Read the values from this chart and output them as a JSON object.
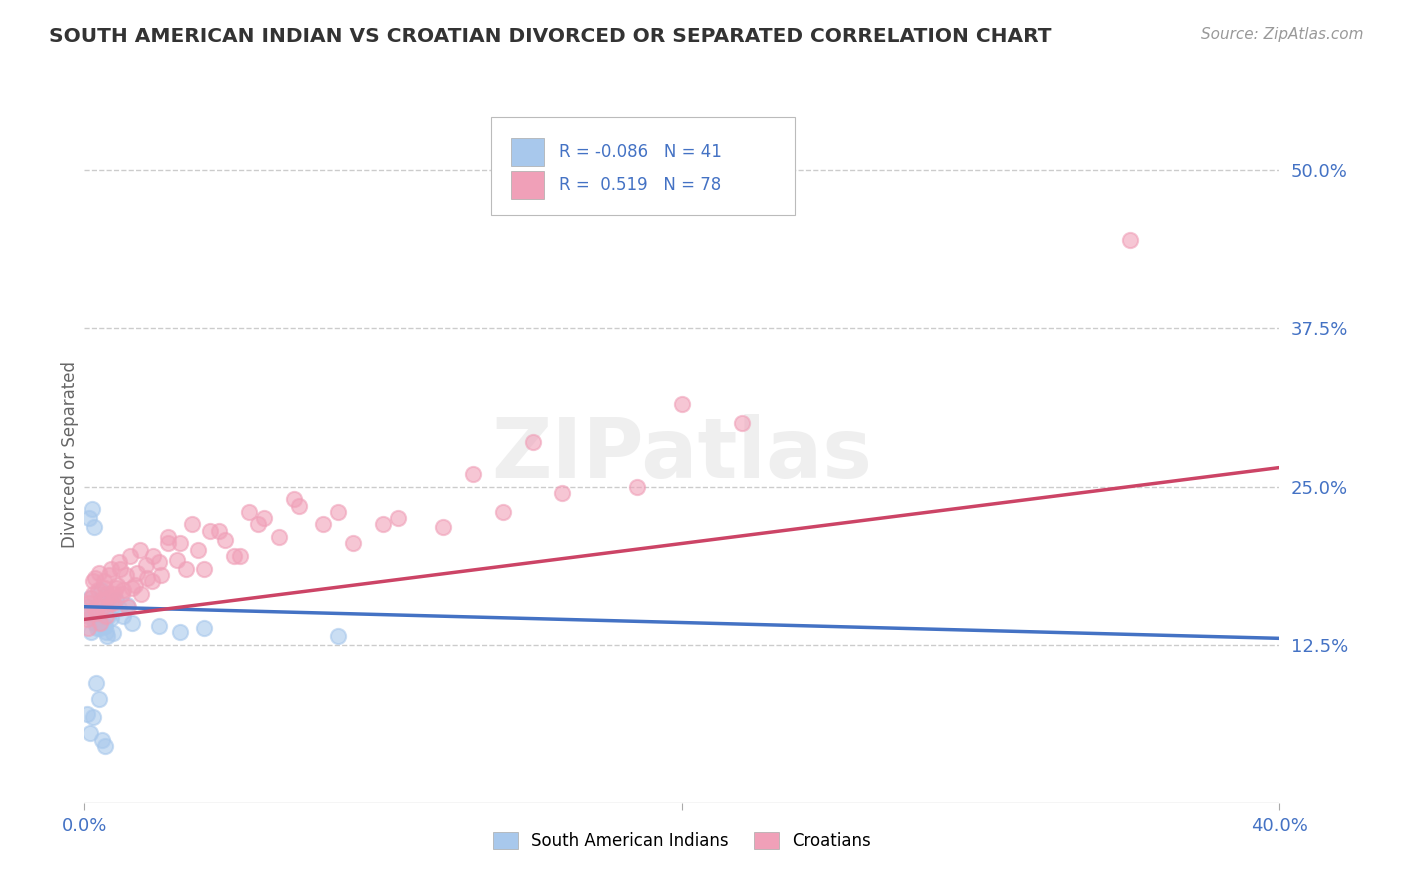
{
  "title": "SOUTH AMERICAN INDIAN VS CROATIAN DIVORCED OR SEPARATED CORRELATION CHART",
  "source": "Source: ZipAtlas.com",
  "ylabel": "Divorced or Separated",
  "legend_label1": "South American Indians",
  "legend_label2": "Croatians",
  "r1": -0.086,
  "n1": 41,
  "r2": 0.519,
  "n2": 78,
  "color1": "#A8C8EC",
  "color2": "#F0A0B8",
  "line1_color": "#4472C4",
  "line2_color": "#CC4466",
  "xlim": [
    0.0,
    40.0
  ],
  "ylim": [
    0.0,
    55.0
  ],
  "yticks": [
    12.5,
    25.0,
    37.5,
    50.0
  ],
  "watermark_text": "ZIPatlas",
  "line1_y0": 15.5,
  "line1_y1": 13.0,
  "line2_y0": 14.5,
  "line2_y1": 26.5,
  "scatter1_x": [
    0.08,
    0.12,
    0.18,
    0.22,
    0.28,
    0.35,
    0.42,
    0.48,
    0.55,
    0.62,
    0.68,
    0.75,
    0.82,
    0.88,
    0.95,
    1.05,
    1.15,
    1.28,
    1.42,
    1.58,
    0.15,
    0.25,
    0.32,
    0.38,
    0.45,
    0.52,
    0.58,
    0.65,
    0.72,
    0.78,
    2.5,
    3.2,
    4.0,
    0.1,
    0.2,
    0.3,
    0.4,
    0.5,
    0.6,
    0.7,
    8.5
  ],
  "scatter1_y": [
    15.5,
    14.8,
    16.2,
    13.5,
    15.0,
    14.2,
    13.8,
    14.5,
    16.8,
    15.2,
    14.0,
    13.2,
    15.8,
    14.6,
    13.4,
    16.0,
    15.4,
    14.8,
    15.6,
    14.2,
    22.5,
    23.2,
    21.8,
    15.0,
    14.5,
    13.8,
    15.5,
    14.0,
    13.5,
    14.8,
    14.0,
    13.5,
    13.8,
    7.0,
    5.5,
    6.8,
    9.5,
    8.2,
    5.0,
    4.5,
    13.2
  ],
  "scatter2_x": [
    0.08,
    0.15,
    0.22,
    0.3,
    0.38,
    0.45,
    0.52,
    0.6,
    0.68,
    0.75,
    0.82,
    0.9,
    0.98,
    1.08,
    1.18,
    1.3,
    1.45,
    1.6,
    1.75,
    1.9,
    2.1,
    2.3,
    2.55,
    2.8,
    3.1,
    3.4,
    3.8,
    4.2,
    4.7,
    5.2,
    5.8,
    6.5,
    7.2,
    8.0,
    9.0,
    10.5,
    12.0,
    14.0,
    16.0,
    18.5,
    0.12,
    0.2,
    0.28,
    0.35,
    0.42,
    0.5,
    0.58,
    0.65,
    0.72,
    0.8,
    0.88,
    0.95,
    1.05,
    1.15,
    1.25,
    1.38,
    1.52,
    1.68,
    1.85,
    2.05,
    2.25,
    2.5,
    2.8,
    3.2,
    3.6,
    4.0,
    4.5,
    5.0,
    5.5,
    6.0,
    7.0,
    8.5,
    10.0,
    20.0,
    22.0,
    15.0,
    35.0,
    13.0
  ],
  "scatter2_y": [
    14.5,
    15.8,
    16.2,
    17.5,
    15.0,
    16.8,
    14.2,
    15.5,
    17.0,
    16.5,
    18.0,
    15.8,
    16.5,
    17.2,
    18.5,
    16.8,
    15.5,
    17.0,
    18.2,
    16.5,
    17.8,
    19.5,
    18.0,
    20.5,
    19.2,
    18.5,
    20.0,
    21.5,
    20.8,
    19.5,
    22.0,
    21.0,
    23.5,
    22.0,
    20.5,
    22.5,
    21.8,
    23.0,
    24.5,
    25.0,
    13.8,
    15.2,
    16.5,
    17.8,
    15.5,
    18.2,
    16.0,
    17.5,
    14.8,
    16.2,
    18.5,
    15.8,
    17.0,
    19.0,
    16.5,
    18.0,
    19.5,
    17.2,
    20.0,
    18.8,
    17.5,
    19.0,
    21.0,
    20.5,
    22.0,
    18.5,
    21.5,
    19.5,
    23.0,
    22.5,
    24.0,
    23.0,
    22.0,
    31.5,
    30.0,
    28.5,
    44.5,
    26.0
  ]
}
